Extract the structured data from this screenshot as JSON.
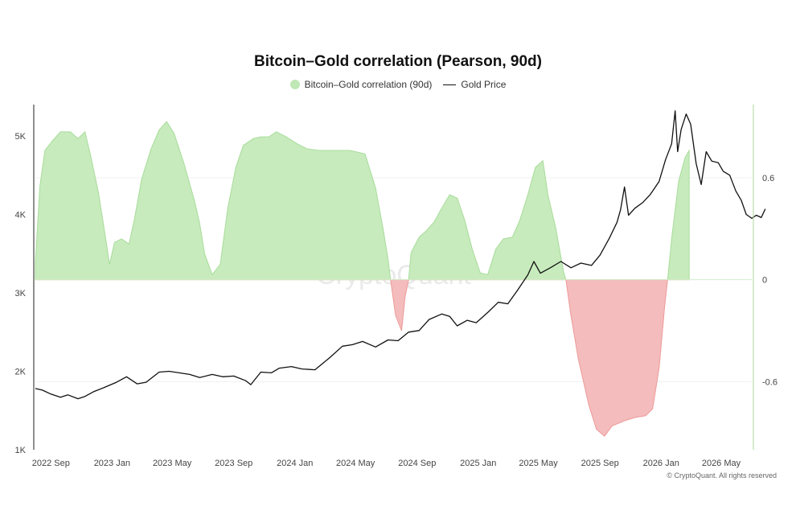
{
  "chart_data": {
    "type": "area+line",
    "title": "Bitcoin–Gold correlation (Pearson, 90d)",
    "legend": {
      "placement": "top-center"
    },
    "x_ticks": [
      "2022 Sep",
      "2023 Jan",
      "2023 May",
      "2023 Sep",
      "2024 Jan",
      "2024 May",
      "2024 Sep",
      "2025 Jan",
      "2025 May",
      "2025 Sep",
      "2026 Jan",
      "2026 May"
    ],
    "x_range": [
      "2022-08",
      "2026-07"
    ],
    "left_axis": {
      "ticks": [
        "1K",
        "2K",
        "3K",
        "4K",
        "5K"
      ],
      "range": [
        1000,
        5400
      ]
    },
    "right_axis": {
      "ticks": [
        "0.6",
        "0",
        "-0.6"
      ],
      "range": [
        -1.0,
        1.03
      ]
    },
    "grid": false,
    "watermark": "CryptoQuant",
    "copyright": "© CryptoQuant. All rights reserved",
    "colors": {
      "positive_fill": "#c7ebbd",
      "positive_stroke": "#a8dc9a",
      "negative_fill": "#f4bcbc",
      "negative_stroke": "#ee9a9a",
      "gold_line": "#111111"
    },
    "series": [
      {
        "name": "Bitcoin–Gold correlation (90d)",
        "kind": "area",
        "axis": "right",
        "points": [
          [
            "2022-08-01",
            0.1
          ],
          [
            "2022-08-10",
            0.55
          ],
          [
            "2022-08-20",
            0.76
          ],
          [
            "2022-09-05",
            0.82
          ],
          [
            "2022-09-20",
            0.87
          ],
          [
            "2022-10-10",
            0.87
          ],
          [
            "2022-10-25",
            0.83
          ],
          [
            "2022-11-08",
            0.87
          ],
          [
            "2022-11-20",
            0.72
          ],
          [
            "2022-12-05",
            0.51
          ],
          [
            "2022-12-20",
            0.23
          ],
          [
            "2022-12-27",
            0.09
          ],
          [
            "2023-01-06",
            0.22
          ],
          [
            "2023-01-20",
            0.24
          ],
          [
            "2023-02-04",
            0.21
          ],
          [
            "2023-02-15",
            0.36
          ],
          [
            "2023-03-01",
            0.59
          ],
          [
            "2023-03-20",
            0.77
          ],
          [
            "2023-04-05",
            0.88
          ],
          [
            "2023-04-20",
            0.93
          ],
          [
            "2023-05-05",
            0.86
          ],
          [
            "2023-05-25",
            0.68
          ],
          [
            "2023-06-15",
            0.46
          ],
          [
            "2023-06-25",
            0.33
          ],
          [
            "2023-07-05",
            0.15
          ],
          [
            "2023-07-20",
            0.03
          ],
          [
            "2023-08-05",
            0.09
          ],
          [
            "2023-08-20",
            0.42
          ],
          [
            "2023-09-05",
            0.66
          ],
          [
            "2023-09-20",
            0.79
          ],
          [
            "2023-10-10",
            0.83
          ],
          [
            "2023-10-25",
            0.84
          ],
          [
            "2023-11-10",
            0.84
          ],
          [
            "2023-11-25",
            0.87
          ],
          [
            "2023-12-15",
            0.84
          ],
          [
            "2024-01-05",
            0.8
          ],
          [
            "2024-01-25",
            0.77
          ],
          [
            "2024-02-20",
            0.76
          ],
          [
            "2024-03-20",
            0.76
          ],
          [
            "2024-04-20",
            0.76
          ],
          [
            "2024-05-20",
            0.74
          ],
          [
            "2024-06-10",
            0.54
          ],
          [
            "2024-06-25",
            0.3
          ],
          [
            "2024-07-05",
            0.12
          ],
          [
            "2024-07-10",
            0.0
          ],
          [
            "2024-07-20",
            -0.21
          ],
          [
            "2024-08-01",
            -0.3
          ],
          [
            "2024-08-08",
            -0.1
          ],
          [
            "2024-08-15",
            0.0
          ],
          [
            "2024-08-20",
            0.16
          ],
          [
            "2024-09-05",
            0.25
          ],
          [
            "2024-09-20",
            0.29
          ],
          [
            "2024-10-05",
            0.34
          ],
          [
            "2024-10-20",
            0.42
          ],
          [
            "2024-11-05",
            0.5
          ],
          [
            "2024-11-20",
            0.48
          ],
          [
            "2024-12-05",
            0.35
          ],
          [
            "2024-12-20",
            0.18
          ],
          [
            "2025-01-05",
            0.04
          ],
          [
            "2025-01-20",
            0.03
          ],
          [
            "2025-02-05",
            0.18
          ],
          [
            "2025-02-20",
            0.24
          ],
          [
            "2025-03-10",
            0.25
          ],
          [
            "2025-03-25",
            0.35
          ],
          [
            "2025-04-10",
            0.5
          ],
          [
            "2025-04-25",
            0.66
          ],
          [
            "2025-05-10",
            0.7
          ],
          [
            "2025-05-20",
            0.5
          ],
          [
            "2025-06-05",
            0.3
          ],
          [
            "2025-06-20",
            0.05
          ],
          [
            "2025-06-25",
            0.0
          ],
          [
            "2025-07-05",
            -0.21
          ],
          [
            "2025-07-20",
            -0.47
          ],
          [
            "2025-08-10",
            -0.74
          ],
          [
            "2025-08-25",
            -0.88
          ],
          [
            "2025-09-10",
            -0.92
          ],
          [
            "2025-09-25",
            -0.86
          ],
          [
            "2025-10-20",
            -0.83
          ],
          [
            "2025-11-10",
            -0.81
          ],
          [
            "2025-12-01",
            -0.8
          ],
          [
            "2025-12-15",
            -0.76
          ],
          [
            "2025-12-28",
            -0.52
          ],
          [
            "2026-01-08",
            -0.16
          ],
          [
            "2026-01-14",
            0.0
          ],
          [
            "2026-01-22",
            0.24
          ],
          [
            "2026-02-05",
            0.58
          ],
          [
            "2026-02-18",
            0.72
          ],
          [
            "2026-02-26",
            0.76
          ]
        ]
      },
      {
        "name": "Gold Price",
        "kind": "line",
        "axis": "left",
        "points": [
          [
            "2022-08-01",
            1780
          ],
          [
            "2022-08-15",
            1760
          ],
          [
            "2022-09-01",
            1710
          ],
          [
            "2022-09-20",
            1670
          ],
          [
            "2022-10-05",
            1700
          ],
          [
            "2022-10-25",
            1650
          ],
          [
            "2022-11-08",
            1680
          ],
          [
            "2022-11-25",
            1740
          ],
          [
            "2022-12-15",
            1790
          ],
          [
            "2023-01-10",
            1860
          ],
          [
            "2023-01-30",
            1930
          ],
          [
            "2023-02-20",
            1840
          ],
          [
            "2023-03-10",
            1860
          ],
          [
            "2023-04-05",
            1990
          ],
          [
            "2023-04-25",
            2000
          ],
          [
            "2023-05-15",
            1980
          ],
          [
            "2023-06-05",
            1960
          ],
          [
            "2023-06-25",
            1920
          ],
          [
            "2023-07-20",
            1960
          ],
          [
            "2023-08-10",
            1930
          ],
          [
            "2023-09-01",
            1940
          ],
          [
            "2023-09-25",
            1880
          ],
          [
            "2023-10-05",
            1830
          ],
          [
            "2023-10-25",
            1990
          ],
          [
            "2023-11-15",
            1980
          ],
          [
            "2023-12-01",
            2040
          ],
          [
            "2023-12-25",
            2060
          ],
          [
            "2024-01-15",
            2030
          ],
          [
            "2024-02-10",
            2020
          ],
          [
            "2024-03-10",
            2170
          ],
          [
            "2024-04-05",
            2320
          ],
          [
            "2024-04-25",
            2340
          ],
          [
            "2024-05-15",
            2380
          ],
          [
            "2024-06-10",
            2310
          ],
          [
            "2024-07-05",
            2400
          ],
          [
            "2024-07-25",
            2390
          ],
          [
            "2024-08-15",
            2500
          ],
          [
            "2024-09-05",
            2520
          ],
          [
            "2024-09-25",
            2660
          ],
          [
            "2024-10-20",
            2730
          ],
          [
            "2024-11-05",
            2700
          ],
          [
            "2024-11-20",
            2580
          ],
          [
            "2024-12-10",
            2650
          ],
          [
            "2024-12-28",
            2620
          ],
          [
            "2025-01-20",
            2750
          ],
          [
            "2025-02-10",
            2880
          ],
          [
            "2025-03-01",
            2860
          ],
          [
            "2025-03-20",
            3030
          ],
          [
            "2025-04-10",
            3230
          ],
          [
            "2025-04-22",
            3400
          ],
          [
            "2025-05-05",
            3250
          ],
          [
            "2025-05-25",
            3320
          ],
          [
            "2025-06-15",
            3400
          ],
          [
            "2025-07-05",
            3320
          ],
          [
            "2025-07-25",
            3380
          ],
          [
            "2025-08-15",
            3350
          ],
          [
            "2025-09-01",
            3480
          ],
          [
            "2025-09-20",
            3700
          ],
          [
            "2025-10-05",
            3900
          ],
          [
            "2025-10-12",
            4060
          ],
          [
            "2025-10-20",
            4350
          ],
          [
            "2025-10-28",
            3990
          ],
          [
            "2025-11-10",
            4080
          ],
          [
            "2025-11-25",
            4150
          ],
          [
            "2025-12-10",
            4250
          ],
          [
            "2025-12-28",
            4420
          ],
          [
            "2026-01-10",
            4700
          ],
          [
            "2026-01-22",
            4900
          ],
          [
            "2026-01-29",
            5320
          ],
          [
            "2026-02-03",
            4800
          ],
          [
            "2026-02-10",
            5080
          ],
          [
            "2026-02-20",
            5280
          ],
          [
            "2026-03-01",
            5150
          ],
          [
            "2026-03-12",
            4650
          ],
          [
            "2026-03-22",
            4380
          ],
          [
            "2026-04-01",
            4800
          ],
          [
            "2026-04-12",
            4680
          ],
          [
            "2026-04-25",
            4660
          ],
          [
            "2026-05-05",
            4550
          ],
          [
            "2026-05-18",
            4500
          ],
          [
            "2026-05-30",
            4300
          ],
          [
            "2026-06-10",
            4180
          ],
          [
            "2026-06-20",
            4000
          ],
          [
            "2026-07-01",
            3950
          ],
          [
            "2026-07-10",
            3990
          ],
          [
            "2026-07-20",
            3960
          ],
          [
            "2026-07-28",
            4070
          ]
        ]
      }
    ]
  }
}
